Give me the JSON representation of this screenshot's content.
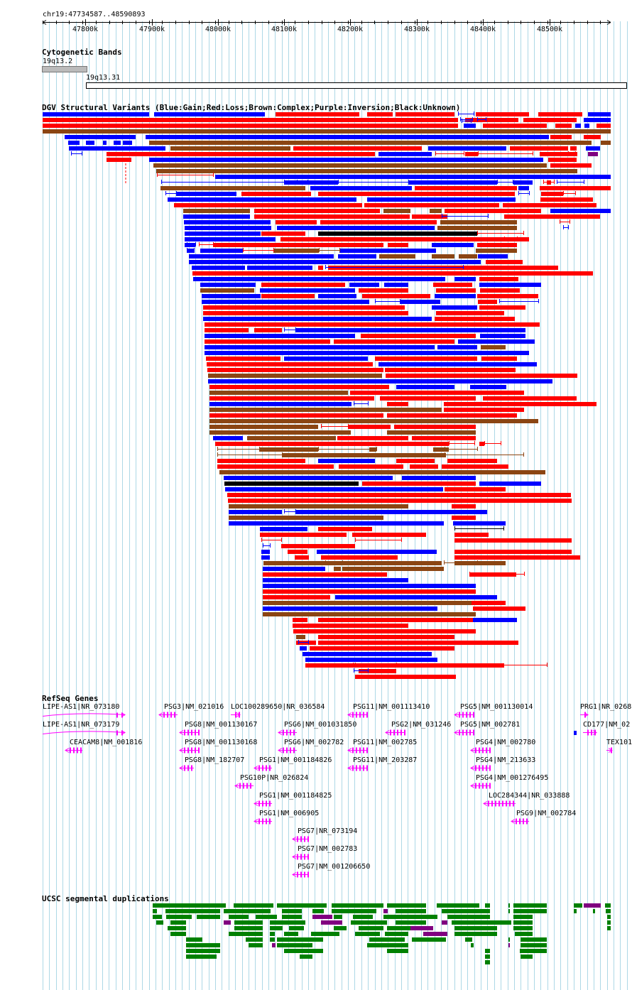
{
  "browser": {
    "position": "chr19:47734587..48590893",
    "ticks": [
      "47800k",
      "47900k",
      "48000k",
      "48100k",
      "48200k",
      "48300k",
      "48400k",
      "48500k"
    ],
    "colors": {
      "gain": "#0000ff",
      "loss": "#ff0000",
      "complex": "#8b4513",
      "inversion": "#800080",
      "unknown": "#000000",
      "gene": "#ff00ff",
      "segdup": "#008000",
      "segdup_alt": "#800080",
      "grid": "#add8e6"
    }
  },
  "cytoband": {
    "title": "Cytogenetic Bands",
    "bands": [
      "19q13.2",
      "19q13.31"
    ]
  },
  "dgv": {
    "title": "DGV Structural Variants (Blue:Gain;Red:Loss;Brown:Complex;Purple:Inversion;Black:Unknown)"
  },
  "refseq": {
    "title": "RefSeq Genes",
    "genes": [
      "LIPE-AS1|NR_073180",
      "LIPE-AS1|NR_073179",
      "CEACAM8|NM_001816",
      "PSG3|NM_021016",
      "LOC100289650|NR_036584",
      "PSG11|NM_001113410",
      "PSG5|NM_001130014",
      "PRG1|NR_0268",
      "PSG8|NM_001130167",
      "PSG6|NM_001031850",
      "PSG2|NM_031246",
      "PSG5|NM_002781",
      "CD177|NM_02",
      "PSG8|NM_001130168",
      "PSG6|NM_002782",
      "PSG11|NM_002785",
      "PSG4|NM_002780",
      "TEX101",
      "PSG8|NM_182707",
      "PSG1|NM_001184826",
      "PSG11|NM_203287",
      "PSG4|NM_213633",
      "PSG10P|NR_026824",
      "PSG4|NM_001276495",
      "PSG1|NM_001184825",
      "LOC284344|NR_033888",
      "PSG1|NM_006905",
      "PSG9|NM_002784",
      "PSG7|NR_073194",
      "PSG7|NM_002783",
      "PSG7|NM_001206650"
    ]
  },
  "segdup": {
    "title": "UCSC segmental duplications"
  }
}
